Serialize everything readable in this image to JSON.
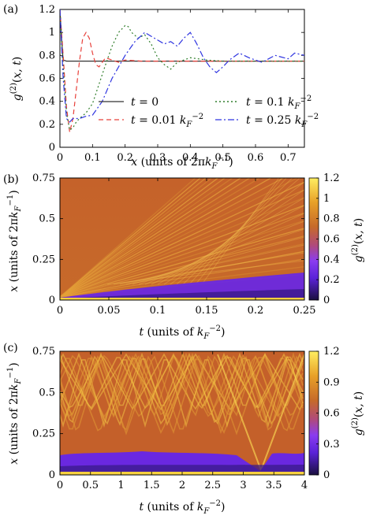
{
  "panels": {
    "a": {
      "label": "(a)"
    },
    "b": {
      "label": "(b)"
    },
    "c": {
      "label": "(c)"
    }
  },
  "chart_data": [
    {
      "id": "a",
      "type": "line",
      "xlabel": "x (units of 2πk_F^-1)",
      "ylabel": "g^(2)(x,t)",
      "xlim": [
        0,
        0.75
      ],
      "ylim": [
        0,
        1.2
      ],
      "xticks": [
        "0",
        "0.1",
        "0.2",
        "0.3",
        "0.4",
        "0.5",
        "0.6",
        "0.7"
      ],
      "yticks": [
        "0",
        "0.2",
        "0.4",
        "0.6",
        "0.8",
        "1",
        "1.2"
      ],
      "legend_position": "bottom-right",
      "series": [
        {
          "name": "t = 0",
          "color": "#333333",
          "dash": "solid",
          "x": [
            0,
            0.004,
            0.006,
            0.01,
            0.02,
            0.04,
            0.06,
            0.1,
            0.2,
            0.3,
            0.4,
            0.5,
            0.6,
            0.7,
            0.75
          ],
          "y": [
            1.2,
            1.0,
            0.9,
            0.76,
            0.75,
            0.75,
            0.75,
            0.75,
            0.75,
            0.75,
            0.75,
            0.75,
            0.75,
            0.75,
            0.75
          ]
        },
        {
          "name": "t = 0.01 k_F^-2",
          "color": "#e8403a",
          "dash": "6,4",
          "x": [
            0,
            0.01,
            0.02,
            0.03,
            0.04,
            0.05,
            0.06,
            0.07,
            0.08,
            0.09,
            0.1,
            0.11,
            0.12,
            0.13,
            0.14,
            0.16,
            0.18,
            0.2,
            0.25,
            0.3,
            0.4,
            0.5,
            0.6,
            0.7,
            0.75
          ],
          "y": [
            1.2,
            0.8,
            0.35,
            0.13,
            0.25,
            0.5,
            0.75,
            0.95,
            1.0,
            0.95,
            0.82,
            0.72,
            0.7,
            0.74,
            0.78,
            0.76,
            0.74,
            0.76,
            0.75,
            0.75,
            0.75,
            0.75,
            0.75,
            0.75,
            0.75
          ]
        },
        {
          "name": "t = 0.1 k_F^-2",
          "color": "#2f7d2a",
          "dash": "2,3",
          "x": [
            0,
            0.01,
            0.02,
            0.03,
            0.04,
            0.05,
            0.06,
            0.08,
            0.1,
            0.12,
            0.14,
            0.16,
            0.18,
            0.2,
            0.21,
            0.22,
            0.24,
            0.26,
            0.28,
            0.3,
            0.32,
            0.34,
            0.36,
            0.4,
            0.45,
            0.5,
            0.6,
            0.7,
            0.75
          ],
          "y": [
            1.2,
            0.7,
            0.3,
            0.15,
            0.17,
            0.22,
            0.25,
            0.3,
            0.38,
            0.55,
            0.72,
            0.88,
            1.0,
            1.06,
            1.05,
            1.0,
            0.95,
            0.98,
            0.9,
            0.78,
            0.72,
            0.68,
            0.74,
            0.78,
            0.76,
            0.75,
            0.75,
            0.75,
            0.75
          ]
        },
        {
          "name": "t = 0.25 k_F^-2",
          "color": "#2e34e0",
          "dash": "8,3,2,3",
          "x": [
            0,
            0.01,
            0.02,
            0.03,
            0.04,
            0.06,
            0.08,
            0.1,
            0.13,
            0.16,
            0.2,
            0.23,
            0.26,
            0.29,
            0.32,
            0.34,
            0.36,
            0.38,
            0.4,
            0.42,
            0.44,
            0.46,
            0.48,
            0.5,
            0.52,
            0.55,
            0.58,
            0.62,
            0.66,
            0.7,
            0.72,
            0.75
          ],
          "y": [
            1.2,
            0.6,
            0.25,
            0.22,
            0.25,
            0.25,
            0.27,
            0.28,
            0.4,
            0.6,
            0.8,
            0.92,
            1.0,
            0.95,
            0.9,
            0.92,
            0.88,
            0.95,
            1.0,
            0.9,
            0.78,
            0.7,
            0.65,
            0.7,
            0.76,
            0.82,
            0.78,
            0.74,
            0.8,
            0.77,
            0.82,
            0.8
          ]
        }
      ]
    },
    {
      "id": "b",
      "type": "heatmap",
      "xlabel": "t (units of k_F^-2)",
      "ylabel": "x (units of 2πk_F^-1)",
      "colorbar_label": "g^(2)(x,t)",
      "xlim": [
        0,
        0.25
      ],
      "ylim": [
        0,
        0.75
      ],
      "xticks": [
        "0",
        "0.05",
        "0.1",
        "0.15",
        "0.2",
        "0.25"
      ],
      "yticks": [
        "0",
        "0.25",
        "0.5",
        "0.75"
      ],
      "colorbar_range": [
        0,
        1.2
      ],
      "colorbar_ticks": [
        "0",
        "0.2",
        "0.4",
        "0.6",
        "0.8",
        "1",
        "1.2"
      ]
    },
    {
      "id": "c",
      "type": "heatmap",
      "xlabel": "t (units of k_F^-2)",
      "ylabel": "x (units of 2πk_F^-1)",
      "colorbar_label": "g^(2)(x,t)",
      "xlim": [
        0,
        4
      ],
      "ylim": [
        0,
        0.75
      ],
      "xticks": [
        "0",
        "0.5",
        "1",
        "1.5",
        "2",
        "2.5",
        "3",
        "3.5",
        "4"
      ],
      "yticks": [
        "0",
        "0.25",
        "0.5",
        "0.75"
      ],
      "colorbar_range": [
        0,
        1.2
      ],
      "colorbar_ticks": [
        "0",
        "0.3",
        "0.6",
        "0.9",
        "1.2"
      ]
    }
  ]
}
